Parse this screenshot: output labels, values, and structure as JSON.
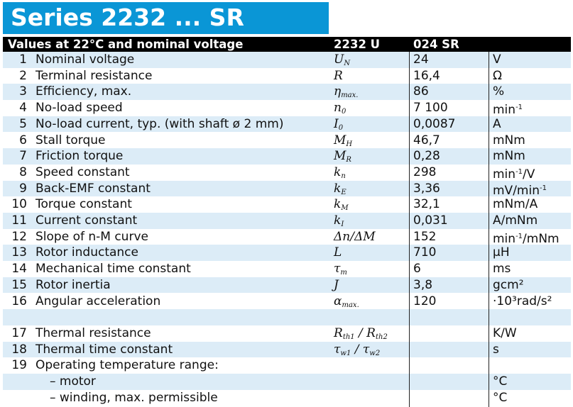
{
  "title": "Series 2232 ... SR",
  "header": {
    "label": "Values at 22°C and nominal voltage",
    "col1": "2232 U",
    "col2": "024 SR"
  },
  "rows": [
    {
      "n": "1",
      "param": "Nominal voltage",
      "sym": "U",
      "sub": "N",
      "val": "24",
      "unit": "V",
      "sup": ""
    },
    {
      "n": "2",
      "param": "Terminal resistance",
      "sym": "R",
      "sub": "",
      "val": "16,4",
      "unit": "Ω",
      "sup": ""
    },
    {
      "n": "3",
      "param": "Efficiency, max.",
      "sym": "η",
      "sub": "max.",
      "val": "86",
      "unit": "%",
      "sup": ""
    },
    {
      "n": "4",
      "param": "No-load speed",
      "sym": "n",
      "sub": "0",
      "val": "7 100",
      "unit": "min",
      "sup": "-1"
    },
    {
      "n": "5",
      "param": "No-load current, typ. (with shaft ø 2 mm)",
      "sym": "I",
      "sub": "0",
      "val": "0,0087",
      "unit": "A",
      "sup": ""
    },
    {
      "n": "6",
      "param": "Stall torque",
      "sym": "M",
      "sub": "H",
      "val": "46,7",
      "unit": "mNm",
      "sup": ""
    },
    {
      "n": "7",
      "param": "Friction torque",
      "sym": "M",
      "sub": "R",
      "val": "0,28",
      "unit": "mNm",
      "sup": ""
    },
    {
      "n": "8",
      "param": "Speed constant",
      "sym": "k",
      "sub": "n",
      "val": "298",
      "unit": "min",
      "sup": "-1",
      "unit2": "/V"
    },
    {
      "n": "9",
      "param": "Back-EMF constant",
      "sym": "k",
      "sub": "E",
      "val": "3,36",
      "unit": "mV/min",
      "sup": "-1"
    },
    {
      "n": "10",
      "param": "Torque constant",
      "sym": "k",
      "sub": "M",
      "val": "32,1",
      "unit": "mNm/A",
      "sup": ""
    },
    {
      "n": "11",
      "param": "Current constant",
      "sym": "k",
      "sub": "I",
      "val": "0,031",
      "unit": "A/mNm",
      "sup": ""
    },
    {
      "n": "12",
      "param": "Slope of n-M curve",
      "sym": "Δn/ΔM",
      "sub": "",
      "val": "152",
      "unit": "min",
      "sup": "-1",
      "unit2": "/mNm"
    },
    {
      "n": "13",
      "param": "Rotor inductance",
      "sym": "L",
      "sub": "",
      "val": "710",
      "unit": "µH",
      "sup": ""
    },
    {
      "n": "14",
      "param": "Mechanical time constant",
      "sym": "τ",
      "sub": "m",
      "val": "6",
      "unit": "ms",
      "sup": ""
    },
    {
      "n": "15",
      "param": "Rotor inertia",
      "sym": "J",
      "sub": "",
      "val": "3,8",
      "unit": "gcm²",
      "sup": ""
    },
    {
      "n": "16",
      "param": "Angular acceleration",
      "sym": "α",
      "sub": "max.",
      "val": "120",
      "unit": "·10³rad/s²",
      "sup": ""
    },
    {
      "n": "",
      "param": "",
      "sym": "",
      "sub": "",
      "val": "",
      "unit": "",
      "sup": ""
    },
    {
      "n": "17",
      "param": "Thermal resistance",
      "sym": "R",
      "sub": "th1",
      "sym2": " / R",
      "sub2": "th2",
      "val": "",
      "unit": "K/W",
      "sup": ""
    },
    {
      "n": "18",
      "param": "Thermal time constant",
      "sym": "τ",
      "sub": "w1",
      "sym2": " / τ",
      "sub2": "w2",
      "val": "",
      "unit": "s",
      "sup": ""
    },
    {
      "n": "19",
      "param": "Operating temperature range:",
      "sym": "",
      "sub": "",
      "val": "",
      "unit": "",
      "sup": ""
    },
    {
      "n": "",
      "param": "– motor",
      "sym": "",
      "sub": "",
      "val": "",
      "unit": "°C",
      "sup": "",
      "indent": true
    },
    {
      "n": "",
      "param": "– winding, max. permissible",
      "sym": "",
      "sub": "",
      "val": "",
      "unit": "°C",
      "sup": "",
      "indent": true
    }
  ],
  "colors": {
    "title_bg": "#0a96d6",
    "header_bg": "#000000",
    "row_shade": "#dcecf7"
  }
}
